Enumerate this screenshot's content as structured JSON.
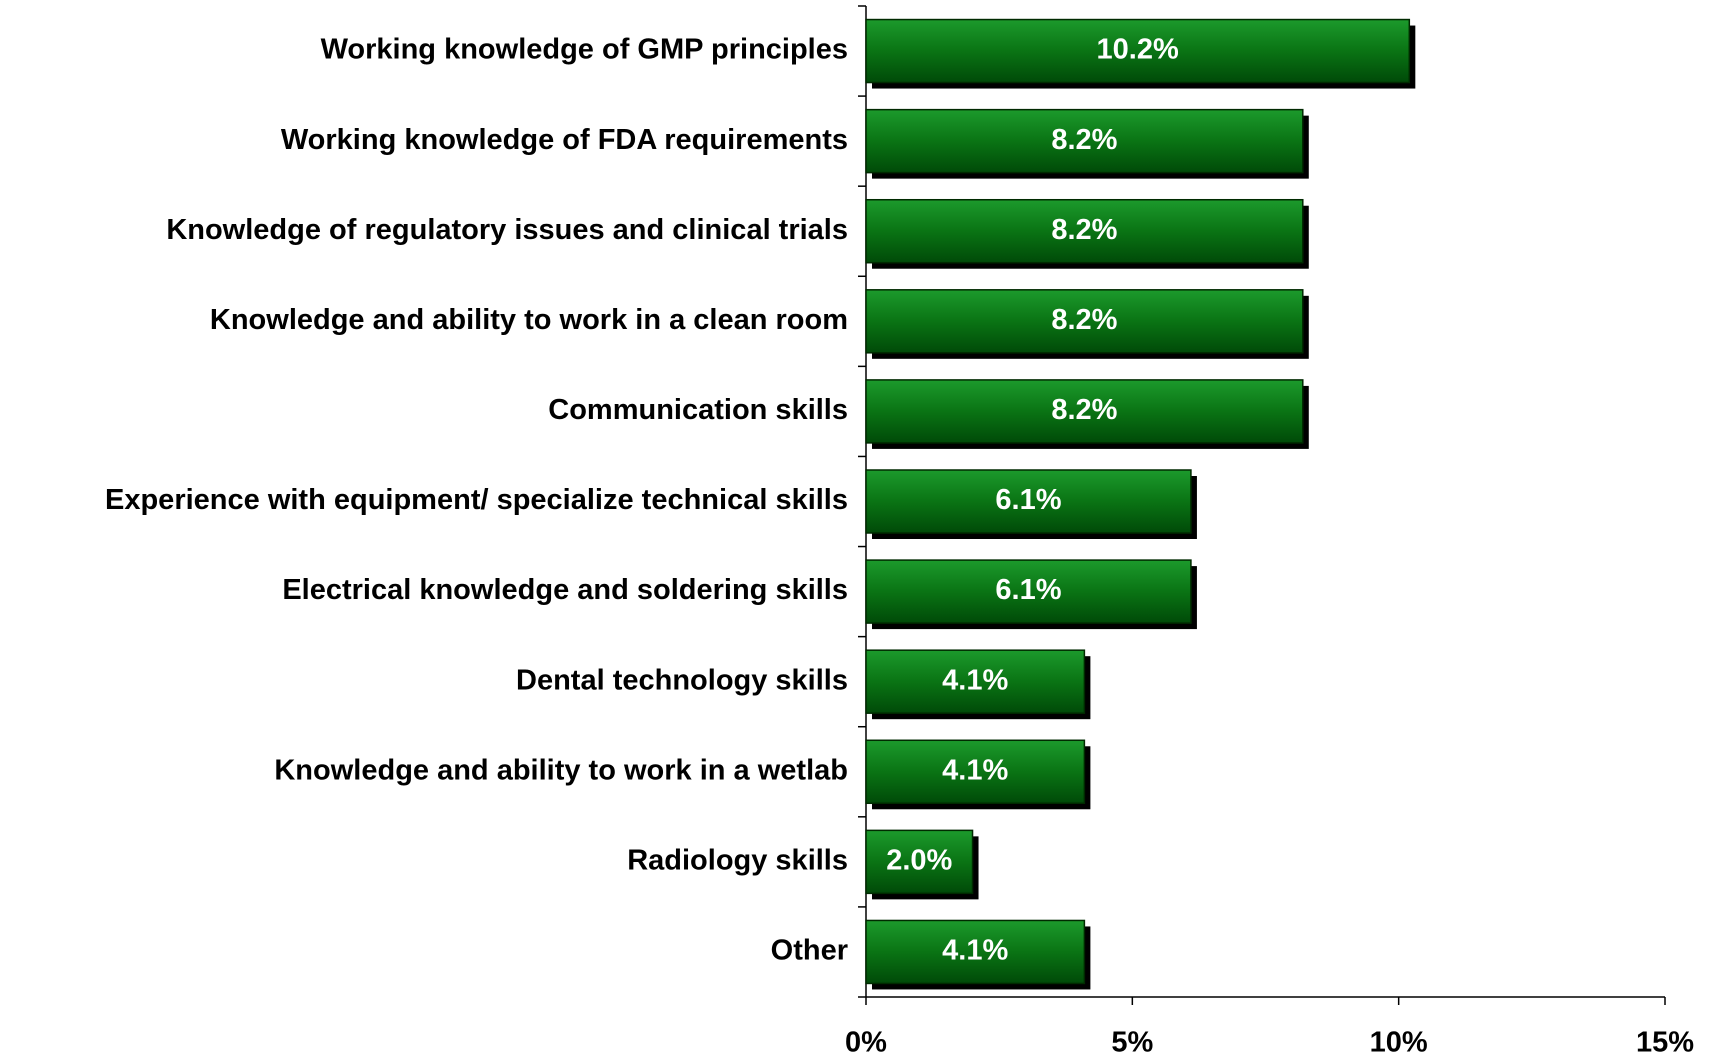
{
  "chart_data": {
    "type": "bar",
    "orientation": "horizontal",
    "categories": [
      "Working knowledge of GMP principles",
      "Working knowledge of FDA requirements",
      "Knowledge of regulatory issues and clinical trials",
      "Knowledge and ability to work in a clean room",
      "Communication skills",
      "Experience with equipment/ specialize technical skills",
      "Electrical knowledge and soldering skills",
      "Dental technology skills",
      "Knowledge and ability to work in a wetlab",
      "Radiology skills",
      "Other"
    ],
    "values": [
      10.2,
      8.2,
      8.2,
      8.2,
      8.2,
      6.1,
      6.1,
      4.1,
      4.1,
      2.0,
      4.1
    ],
    "value_labels": [
      "10.2%",
      "8.2%",
      "8.2%",
      "8.2%",
      "8.2%",
      "6.1%",
      "6.1%",
      "4.1%",
      "4.1%",
      "2.0%",
      "4.1%"
    ],
    "color": "#0a7a14",
    "xlim": [
      0,
      15
    ],
    "xticks": [
      {
        "value": 0,
        "label": "0%"
      },
      {
        "value": 5,
        "label": "5%"
      },
      {
        "value": 10,
        "label": "10%"
      },
      {
        "value": 15,
        "label": "15%"
      }
    ],
    "grid": false
  }
}
